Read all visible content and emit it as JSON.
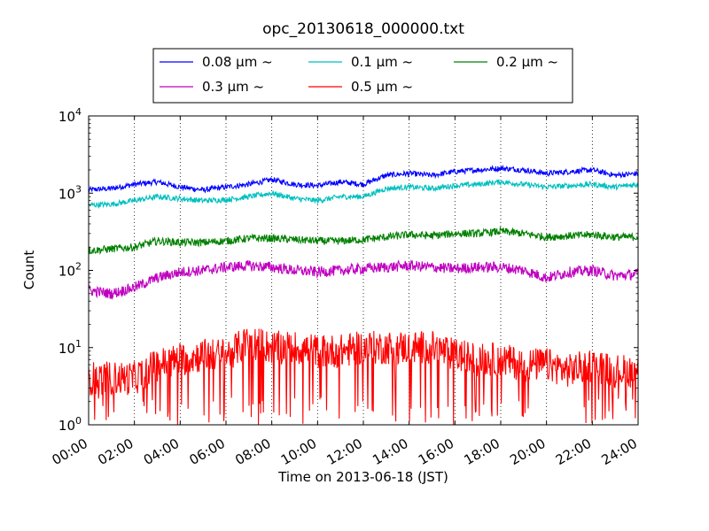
{
  "chart_data": {
    "type": "line",
    "title": "opc_20130618_000000.txt",
    "xlabel": "Time on 2013-06-18 (JST)",
    "ylabel": "Count",
    "y_scale": "log",
    "ylim": [
      1,
      10000
    ],
    "xlim": [
      "00:00",
      "24:00"
    ],
    "x_ticks": [
      "00:00",
      "02:00",
      "04:00",
      "06:00",
      "08:00",
      "10:00",
      "12:00",
      "14:00",
      "16:00",
      "18:00",
      "20:00",
      "22:00",
      "24:00"
    ],
    "y_ticks": [
      {
        "value": 1,
        "base": "10",
        "exp": "0"
      },
      {
        "value": 10,
        "base": "10",
        "exp": "1"
      },
      {
        "value": 100,
        "base": "10",
        "exp": "2"
      },
      {
        "value": 1000,
        "base": "10",
        "exp": "3"
      },
      {
        "value": 10000,
        "base": "10",
        "exp": "4"
      }
    ],
    "grid": "vertical dotted at x ticks",
    "legend_position": "top-center",
    "x": [
      "00:00",
      "01:00",
      "02:00",
      "03:00",
      "04:00",
      "05:00",
      "06:00",
      "07:00",
      "08:00",
      "09:00",
      "10:00",
      "11:00",
      "12:00",
      "13:00",
      "14:00",
      "15:00",
      "16:00",
      "17:00",
      "18:00",
      "19:00",
      "20:00",
      "21:00",
      "22:00",
      "23:00",
      "24:00"
    ],
    "series": [
      {
        "name": "0.08 μm ~",
        "color": "#0000ff",
        "values": [
          1100,
          1150,
          1300,
          1400,
          1200,
          1100,
          1200,
          1300,
          1500,
          1300,
          1250,
          1400,
          1300,
          1700,
          1800,
          1700,
          1900,
          2000,
          2100,
          2000,
          1800,
          1900,
          2000,
          1700,
          1800
        ]
      },
      {
        "name": "0.1 μm ~",
        "color": "#00bfbf",
        "values": [
          700,
          720,
          800,
          900,
          850,
          800,
          820,
          900,
          1000,
          850,
          800,
          900,
          900,
          1150,
          1200,
          1150,
          1250,
          1300,
          1400,
          1300,
          1200,
          1250,
          1300,
          1200,
          1300
        ]
      },
      {
        "name": "0.2 μm ~",
        "color": "#008000",
        "values": [
          180,
          190,
          200,
          240,
          230,
          230,
          240,
          260,
          260,
          250,
          240,
          240,
          250,
          270,
          290,
          280,
          300,
          300,
          320,
          300,
          270,
          280,
          290,
          270,
          270
        ]
      },
      {
        "name": "0.3 μm ~",
        "color": "#bf00bf",
        "values": [
          55,
          50,
          60,
          80,
          95,
          100,
          110,
          115,
          110,
          100,
          95,
          100,
          105,
          110,
          115,
          110,
          105,
          110,
          110,
          100,
          80,
          95,
          100,
          85,
          90
        ]
      },
      {
        "name": "0.5 μm ~",
        "color": "#ff0000",
        "values": [
          4,
          4,
          4,
          6,
          7,
          8,
          8,
          12,
          10,
          10,
          9,
          9,
          10,
          10,
          10,
          10,
          8,
          7,
          7,
          6,
          6,
          5,
          6,
          5,
          5
        ]
      }
    ]
  }
}
